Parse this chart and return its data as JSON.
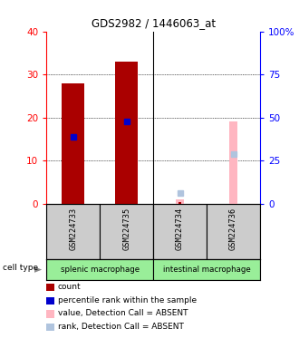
{
  "title": "GDS2982 / 1446063_at",
  "samples": [
    "GSM224733",
    "GSM224735",
    "GSM224734",
    "GSM224736"
  ],
  "cell_types": [
    {
      "label": "splenic macrophage",
      "span": [
        0,
        2
      ]
    },
    {
      "label": "intestinal macrophage",
      "span": [
        2,
        4
      ]
    }
  ],
  "count_values": [
    28,
    33,
    0.4,
    0
  ],
  "rank_values": [
    15.5,
    19,
    0,
    11.5
  ],
  "absent_value_values": [
    0,
    0,
    1.0,
    19
  ],
  "absent_rank_values": [
    0,
    0,
    2.5,
    11.5
  ],
  "detection_absent": [
    false,
    false,
    true,
    true
  ],
  "ylim_left": [
    0,
    40
  ],
  "ylim_right": [
    0,
    100
  ],
  "yticks_left": [
    0,
    10,
    20,
    30,
    40
  ],
  "yticks_right": [
    0,
    25,
    50,
    75,
    100
  ],
  "colors": {
    "count": "#aa0000",
    "rank": "#0000cc",
    "absent_value": "#ffb6c1",
    "absent_rank": "#b0c4de",
    "cell_type_bg": "#99ee99",
    "sample_bg": "#cccccc",
    "border": "#000000"
  },
  "legend_items": [
    {
      "color": "#aa0000",
      "label": "count"
    },
    {
      "color": "#0000cc",
      "label": "percentile rank within the sample"
    },
    {
      "color": "#ffb6c1",
      "label": "value, Detection Call = ABSENT"
    },
    {
      "color": "#b0c4de",
      "label": "rank, Detection Call = ABSENT"
    }
  ],
  "figsize": [
    3.3,
    3.84
  ],
  "dpi": 100
}
